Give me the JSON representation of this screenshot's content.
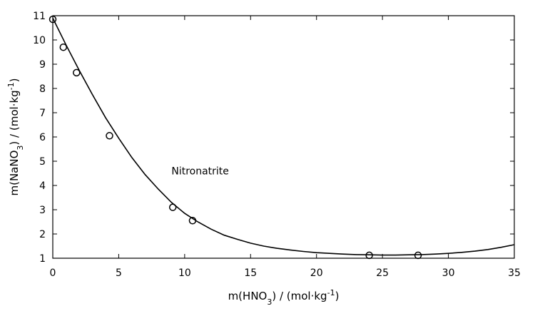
{
  "chart_data": {
    "type": "scatter",
    "xlabel": "m(HNO3) / (mol·kg-1)",
    "ylabel": "m(NaNO3) / (mol·kg-1)",
    "xlim": [
      0,
      35
    ],
    "ylim": [
      1,
      11
    ],
    "x_ticks": [
      "0",
      "5",
      "10",
      "15",
      "20",
      "25",
      "30",
      "35"
    ],
    "y_ticks": [
      "1",
      "2",
      "3",
      "4",
      "5",
      "6",
      "7",
      "8",
      "9",
      "10",
      "11"
    ],
    "grid": false,
    "annotations": [
      {
        "text": "Nitronatrite",
        "x": 9.0,
        "y": 4.45
      }
    ],
    "series": [
      {
        "type": "scatter",
        "marker": "open-circle",
        "color": "#000000",
        "x": [
          0.0,
          0.8,
          1.8,
          4.3,
          9.1,
          10.6,
          24.0,
          27.7
        ],
        "y": [
          10.85,
          9.7,
          8.65,
          6.05,
          3.1,
          2.55,
          1.12,
          1.12
        ]
      },
      {
        "type": "line",
        "color": "#000000",
        "x": [
          0,
          1,
          2,
          3,
          4,
          5,
          6,
          7,
          8,
          9,
          10,
          11,
          12,
          13,
          14,
          15,
          16,
          17,
          18,
          19,
          20,
          21,
          22,
          23,
          24,
          25,
          26,
          27,
          28,
          29,
          30,
          31,
          32,
          33,
          34,
          35
        ],
        "y": [
          10.9,
          9.8,
          8.75,
          7.75,
          6.8,
          5.95,
          5.15,
          4.45,
          3.85,
          3.3,
          2.85,
          2.5,
          2.2,
          1.95,
          1.78,
          1.62,
          1.5,
          1.41,
          1.34,
          1.28,
          1.23,
          1.2,
          1.17,
          1.15,
          1.14,
          1.13,
          1.13,
          1.14,
          1.15,
          1.17,
          1.2,
          1.24,
          1.29,
          1.36,
          1.45,
          1.56
        ]
      }
    ]
  }
}
